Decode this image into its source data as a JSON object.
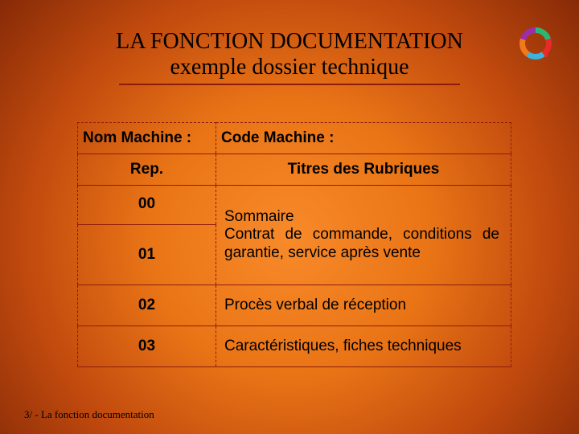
{
  "title": {
    "line1": "LA FONCTION DOCUMENTATION",
    "line2": "exemple dossier technique",
    "fontsize": 28,
    "color": "#000000",
    "underline_color": "#8e1c0c"
  },
  "logo": {
    "segments": [
      {
        "color": "#2cb673",
        "start": -90,
        "end": -18
      },
      {
        "color": "#e82a2a",
        "start": -18,
        "end": 54
      },
      {
        "color": "#3bb2e0",
        "start": 54,
        "end": 126
      },
      {
        "color": "#f07a18",
        "start": 126,
        "end": 198
      },
      {
        "color": "#9a2fae",
        "start": 198,
        "end": 270
      }
    ],
    "dot_color": "#e82a2a"
  },
  "table": {
    "border_color": "#8e1c0c",
    "header": {
      "left": "Nom Machine :",
      "right": "Code Machine :"
    },
    "subheader": {
      "left": "Rep.",
      "right": "Titres des Rubriques"
    },
    "rows": [
      {
        "rep": "00",
        "rubrique": "Sommaire"
      },
      {
        "rep": "01",
        "rubrique": "Contrat de commande, conditions de garantie, service après vente"
      },
      {
        "rep": "02",
        "rubrique": "Procès verbal de réception"
      },
      {
        "rep": "03",
        "rubrique": "Caractéristiques, fiches techniques"
      }
    ],
    "col_left_width": 172,
    "fontsize": 19
  },
  "footer": "3/ - La fonction documentation",
  "background": {
    "center": "#f88a2a",
    "mid": "#e97416",
    "outer": "#c14a0e",
    "edge": "#7a2305"
  }
}
